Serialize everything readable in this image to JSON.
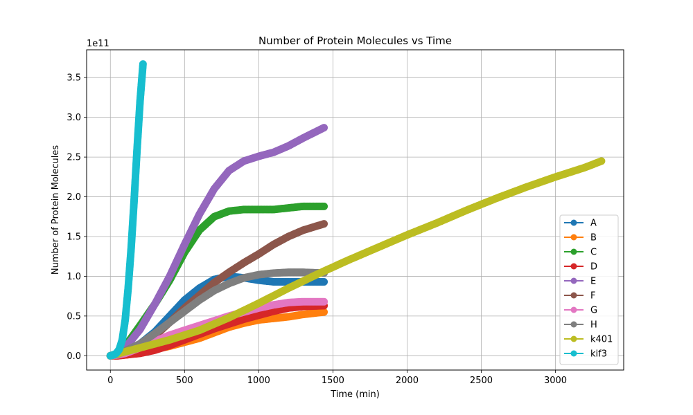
{
  "chart_data": {
    "type": "line",
    "title": "Number of Protein Molecules vs Time",
    "xlabel": "Time (min)",
    "ylabel": "Number of Protein Molecules",
    "y_offset_text": "1e11",
    "xlim": [
      -160,
      3460
    ],
    "ylim": [
      -0.18,
      3.85
    ],
    "y_units_multiplier": 100000000000.0,
    "xticks": [
      0,
      500,
      1000,
      1500,
      2000,
      2500,
      3000
    ],
    "yticks": [
      0.0,
      0.5,
      1.0,
      1.5,
      2.0,
      2.5,
      3.0,
      3.5
    ],
    "xtick_labels": [
      "0",
      "500",
      "1000",
      "1500",
      "2000",
      "2500",
      "3000"
    ],
    "ytick_labels": [
      "0.0",
      "0.5",
      "1.0",
      "1.5",
      "2.0",
      "2.5",
      "3.0",
      "3.5"
    ],
    "grid": true,
    "legend_position": "lower-right",
    "series": [
      {
        "name": "A",
        "color": "#1f77b4",
        "x": [
          0,
          50,
          100,
          200,
          300,
          400,
          500,
          600,
          700,
          800,
          900,
          1000,
          1100,
          1200,
          1300,
          1440
        ],
        "y": [
          0,
          0.01,
          0.05,
          0.15,
          0.3,
          0.5,
          0.7,
          0.85,
          0.96,
          1.0,
          0.98,
          0.95,
          0.93,
          0.93,
          0.93,
          0.93
        ]
      },
      {
        "name": "B",
        "color": "#ff7f0e",
        "x": [
          0,
          50,
          100,
          200,
          300,
          400,
          500,
          600,
          700,
          800,
          900,
          1000,
          1100,
          1200,
          1300,
          1440
        ],
        "y": [
          0,
          0,
          0.01,
          0.04,
          0.08,
          0.12,
          0.17,
          0.22,
          0.29,
          0.36,
          0.41,
          0.45,
          0.47,
          0.49,
          0.52,
          0.55
        ]
      },
      {
        "name": "C",
        "color": "#2ca02c",
        "x": [
          0,
          50,
          100,
          200,
          300,
          400,
          500,
          600,
          700,
          800,
          900,
          1000,
          1100,
          1200,
          1300,
          1440
        ],
        "y": [
          0,
          0.03,
          0.12,
          0.38,
          0.65,
          0.95,
          1.3,
          1.58,
          1.75,
          1.82,
          1.84,
          1.84,
          1.84,
          1.86,
          1.88,
          1.88
        ]
      },
      {
        "name": "D",
        "color": "#d62728",
        "x": [
          0,
          50,
          100,
          200,
          300,
          400,
          500,
          600,
          700,
          800,
          900,
          1000,
          1100,
          1200,
          1300,
          1440
        ],
        "y": [
          0,
          0,
          0.01,
          0.03,
          0.07,
          0.13,
          0.2,
          0.27,
          0.34,
          0.4,
          0.46,
          0.51,
          0.56,
          0.6,
          0.62,
          0.63
        ]
      },
      {
        "name": "E",
        "color": "#9467bd",
        "x": [
          0,
          50,
          100,
          200,
          300,
          400,
          500,
          600,
          700,
          800,
          900,
          1000,
          1100,
          1200,
          1300,
          1440
        ],
        "y": [
          0,
          0.02,
          0.1,
          0.33,
          0.65,
          1.0,
          1.4,
          1.78,
          2.1,
          2.33,
          2.45,
          2.51,
          2.56,
          2.64,
          2.74,
          2.87
        ]
      },
      {
        "name": "F",
        "color": "#8c564b",
        "x": [
          0,
          50,
          100,
          200,
          300,
          400,
          500,
          600,
          700,
          800,
          900,
          1000,
          1100,
          1200,
          1300,
          1440
        ],
        "y": [
          0,
          0.01,
          0.04,
          0.12,
          0.25,
          0.42,
          0.6,
          0.76,
          0.92,
          1.05,
          1.17,
          1.28,
          1.4,
          1.5,
          1.58,
          1.66
        ]
      },
      {
        "name": "G",
        "color": "#e377c2",
        "x": [
          0,
          50,
          100,
          200,
          300,
          400,
          500,
          600,
          700,
          800,
          900,
          1000,
          1100,
          1200,
          1300,
          1440
        ],
        "y": [
          0,
          0.01,
          0.03,
          0.1,
          0.18,
          0.26,
          0.32,
          0.38,
          0.44,
          0.5,
          0.55,
          0.6,
          0.64,
          0.67,
          0.68,
          0.68
        ]
      },
      {
        "name": "H",
        "color": "#7f7f7f",
        "x": [
          0,
          50,
          100,
          200,
          300,
          400,
          500,
          600,
          700,
          800,
          900,
          1000,
          1100,
          1200,
          1300,
          1440
        ],
        "y": [
          0,
          0.02,
          0.06,
          0.15,
          0.28,
          0.42,
          0.56,
          0.7,
          0.82,
          0.91,
          0.98,
          1.02,
          1.04,
          1.05,
          1.05,
          1.04
        ]
      },
      {
        "name": "k401",
        "color": "#bcbd22",
        "x": [
          0,
          100,
          200,
          400,
          600,
          800,
          1000,
          1200,
          1400,
          1600,
          1800,
          2000,
          2200,
          2400,
          2600,
          2800,
          3000,
          3200,
          3310
        ],
        "y": [
          0,
          0.05,
          0.1,
          0.2,
          0.32,
          0.48,
          0.66,
          0.85,
          1.03,
          1.2,
          1.36,
          1.52,
          1.67,
          1.83,
          1.98,
          2.12,
          2.25,
          2.37,
          2.45
        ]
      },
      {
        "name": "kif3",
        "color": "#17becf",
        "x": [
          0,
          20,
          40,
          60,
          80,
          100,
          120,
          140,
          160,
          180,
          200,
          220
        ],
        "y": [
          0,
          0.01,
          0.03,
          0.08,
          0.2,
          0.45,
          0.85,
          1.35,
          1.95,
          2.6,
          3.2,
          3.67
        ]
      }
    ]
  }
}
